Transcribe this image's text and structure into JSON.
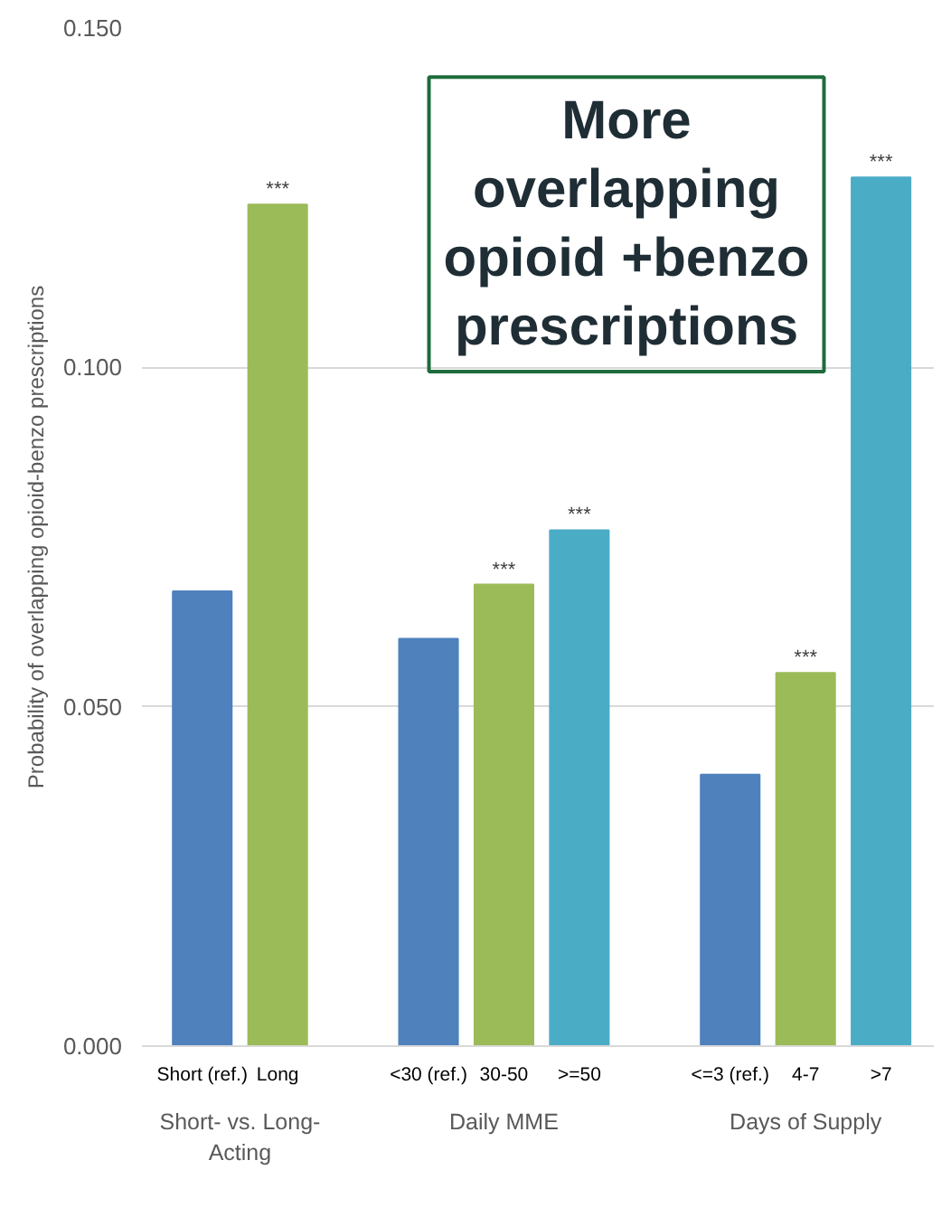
{
  "chart_data": {
    "type": "bar",
    "categories": [
      "Short (ref.)",
      "Long",
      null,
      "<30 (ref.)",
      "30-50",
      ">=50",
      null,
      "<=3 (ref.)",
      "4-7",
      ">7"
    ],
    "values": [
      0.067,
      0.124,
      null,
      0.06,
      0.068,
      0.076,
      null,
      0.04,
      0.055,
      0.128
    ],
    "colors": [
      "#4f81bd",
      "#9bbb59",
      "#ffffff",
      "#4f81bd",
      "#9bbb59",
      "#4bacc6",
      "#ffffff",
      "#4f81bd",
      "#9bbb59",
      "#4bacc6"
    ],
    "ylabel": "Probability of overlapping opioid-benzo prescriptions",
    "ylim": [
      0,
      0.15
    ],
    "yticks": [
      {
        "value": 0,
        "label": "0.000"
      },
      {
        "value": 0.05,
        "label": "0.050"
      },
      {
        "value": 0.1,
        "label": "0.100"
      },
      {
        "value": 0.15,
        "label": "0.150"
      }
    ],
    "grid": "y",
    "annotations": [
      "More overlapping opioid +benzo prescriptions",
      "Short- vs. Long-Acting",
      "Daily MME",
      "Days of Supply",
      {
        "text": "***",
        "x": "Long",
        "y": 0.124
      },
      {
        "text": "***",
        "x": "30-50",
        "y": 0.068
      },
      {
        "text": "***",
        "x": ">=50",
        "y": 0.076
      },
      {
        "text": "***",
        "x": "4-7",
        "y": 0.055
      },
      {
        "text": "***",
        "x": ">7",
        "y": 0.128
      }
    ]
  }
}
